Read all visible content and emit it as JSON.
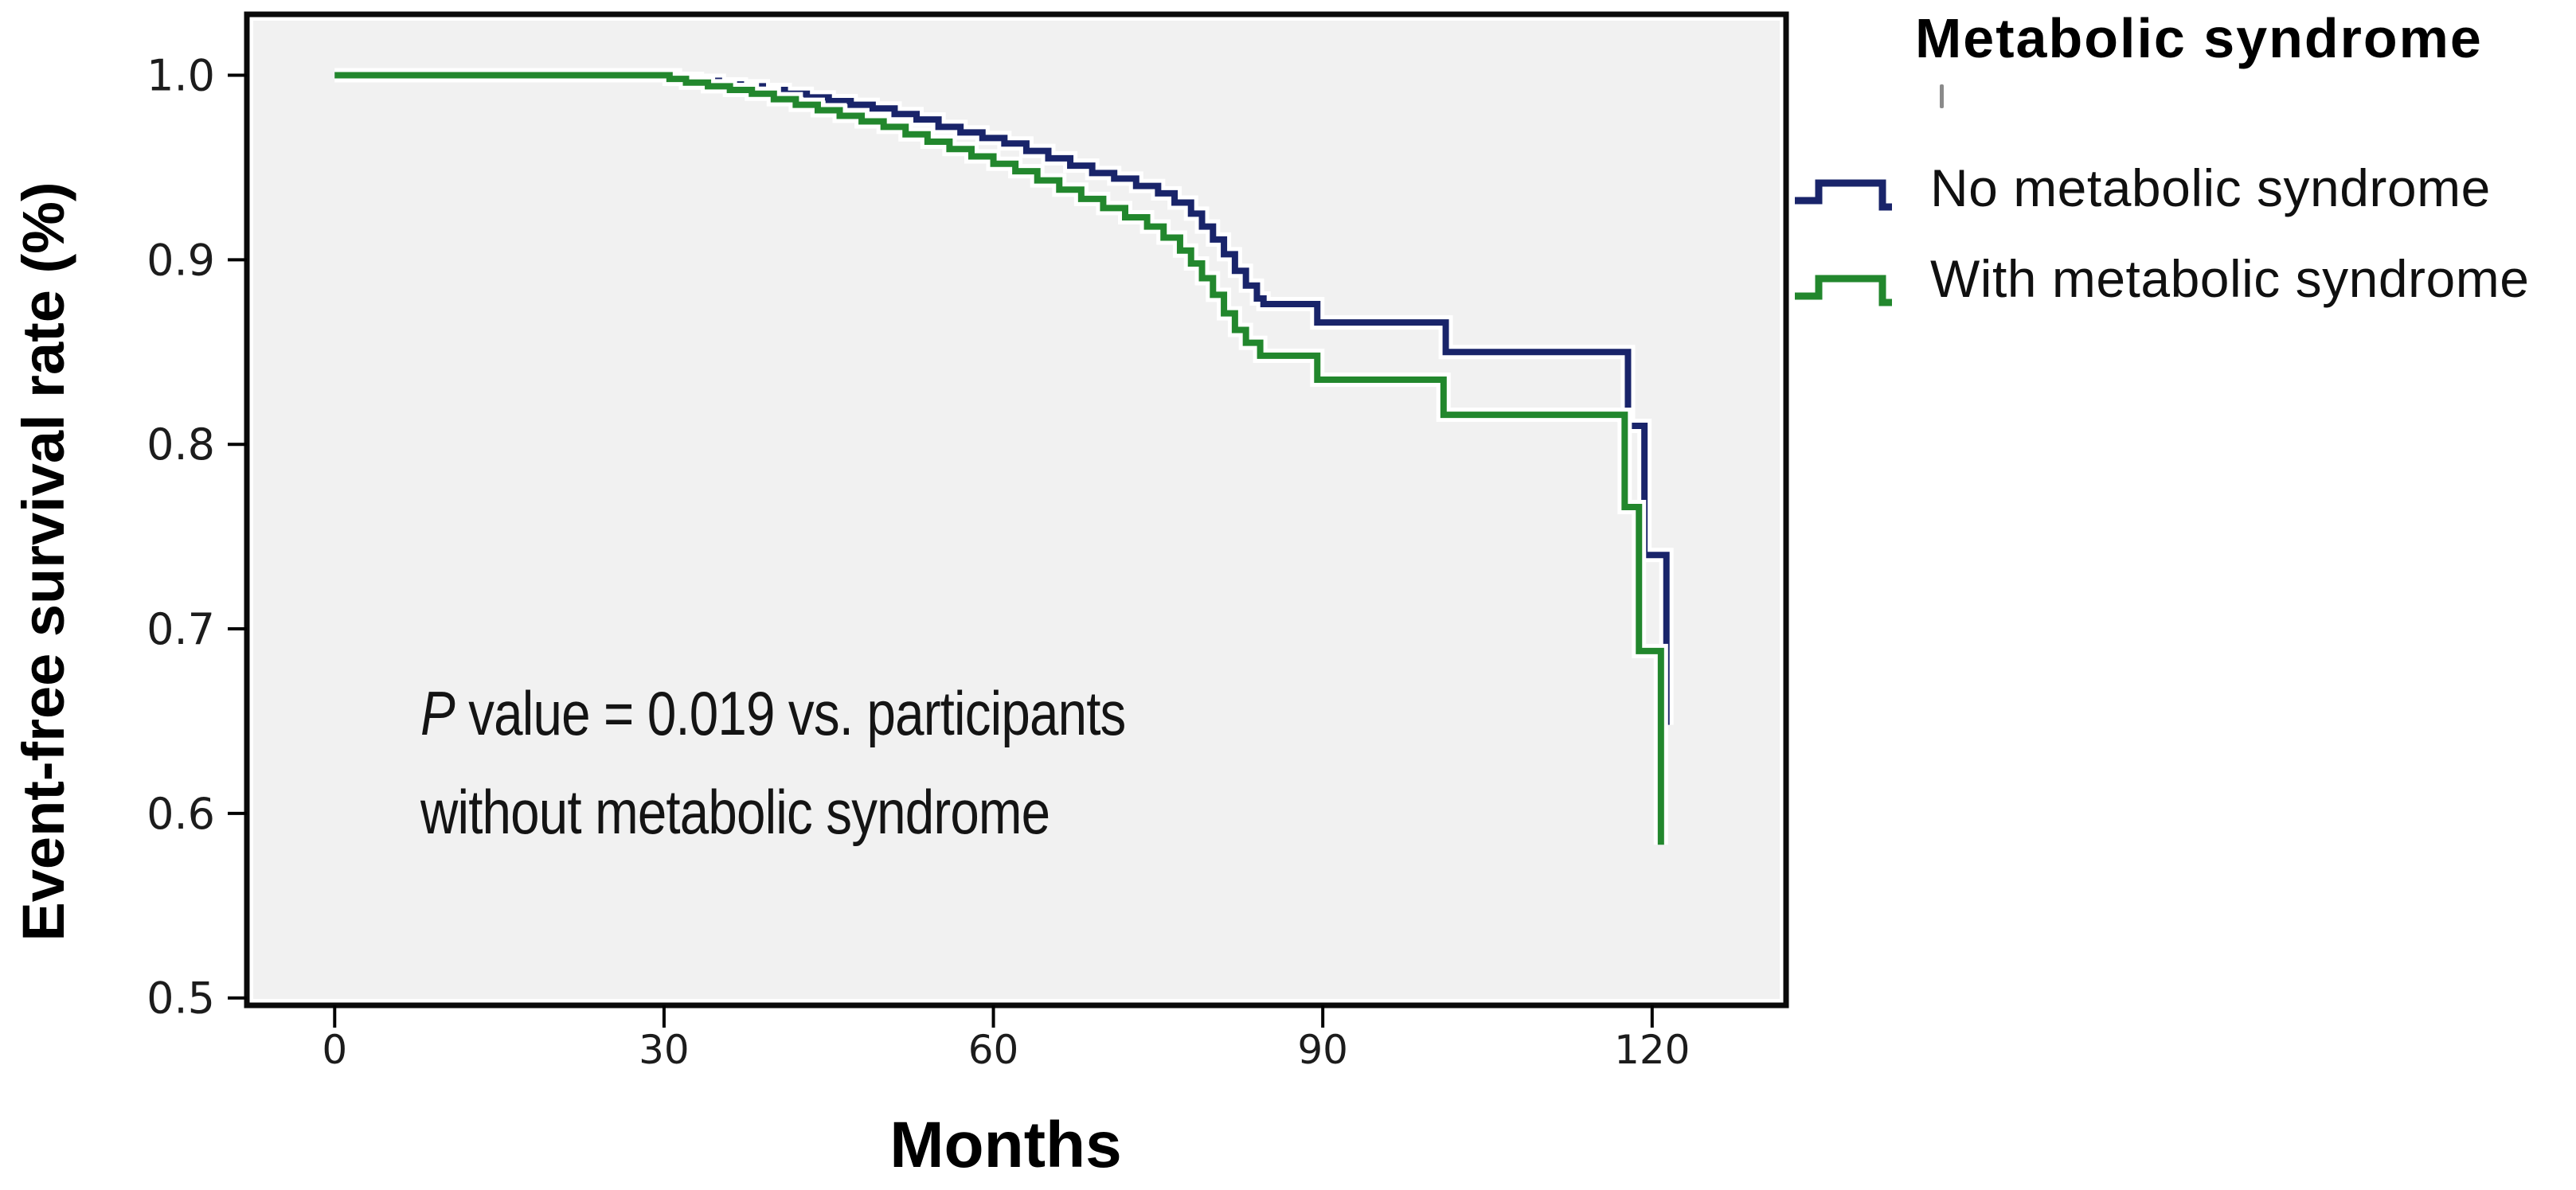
{
  "chart_data": {
    "type": "line",
    "subtype": "kaplan-meier-step",
    "title": "",
    "xlabel": "Months",
    "ylabel": "Event-free survival rate (%)",
    "x_ticks": [
      "0",
      "30",
      "60",
      "90",
      "120"
    ],
    "y_ticks": [
      "1.0",
      "0.9",
      "0.8",
      "0.7",
      "0.6",
      "0.5"
    ],
    "xlim": [
      -8,
      132.2
    ],
    "ylim": [
      0.496,
      1.033
    ],
    "grid": false,
    "plot_bg": "#f1f1f1",
    "border_color": "#0a0a0a",
    "legend_position": "right",
    "series": [
      {
        "name": "No metabolic syndrome",
        "color": "#19246a",
        "points": [
          [
            0,
            1.0
          ],
          [
            31,
            0.998
          ],
          [
            33,
            0.997
          ],
          [
            35,
            0.995
          ],
          [
            37,
            0.994
          ],
          [
            39,
            0.992
          ],
          [
            41,
            0.99
          ],
          [
            43,
            0.988
          ],
          [
            45,
            0.986
          ],
          [
            47,
            0.984
          ],
          [
            49,
            0.982
          ],
          [
            51,
            0.979
          ],
          [
            53,
            0.976
          ],
          [
            55,
            0.972
          ],
          [
            57,
            0.969
          ],
          [
            59,
            0.966
          ],
          [
            61,
            0.963
          ],
          [
            63,
            0.959
          ],
          [
            65,
            0.955
          ],
          [
            67,
            0.951
          ],
          [
            69,
            0.947
          ],
          [
            71,
            0.944
          ],
          [
            73,
            0.94
          ],
          [
            75,
            0.936
          ],
          [
            76.5,
            0.931
          ],
          [
            78,
            0.925
          ],
          [
            79,
            0.918
          ],
          [
            80,
            0.911
          ],
          [
            81,
            0.903
          ],
          [
            82,
            0.894
          ],
          [
            83,
            0.886
          ],
          [
            84,
            0.879
          ],
          [
            84.6,
            0.876
          ],
          [
            89.5,
            0.866
          ],
          [
            101.2,
            0.85
          ],
          [
            117.8,
            0.81
          ],
          [
            119.3,
            0.74
          ],
          [
            121.3,
            0.648
          ]
        ]
      },
      {
        "name": "With metabolic syndrome",
        "color": "#22872d",
        "points": [
          [
            0,
            1.0
          ],
          [
            30.5,
            0.998
          ],
          [
            32,
            0.996
          ],
          [
            34,
            0.994
          ],
          [
            36,
            0.992
          ],
          [
            38,
            0.99
          ],
          [
            40,
            0.987
          ],
          [
            42,
            0.984
          ],
          [
            44,
            0.981
          ],
          [
            46,
            0.978
          ],
          [
            48,
            0.975
          ],
          [
            50,
            0.972
          ],
          [
            52,
            0.968
          ],
          [
            54,
            0.964
          ],
          [
            56,
            0.96
          ],
          [
            58,
            0.956
          ],
          [
            60,
            0.952
          ],
          [
            62,
            0.948
          ],
          [
            64,
            0.943
          ],
          [
            66,
            0.938
          ],
          [
            68,
            0.933
          ],
          [
            70,
            0.928
          ],
          [
            72,
            0.923
          ],
          [
            74,
            0.918
          ],
          [
            75.5,
            0.912
          ],
          [
            77,
            0.905
          ],
          [
            78,
            0.898
          ],
          [
            79,
            0.89
          ],
          [
            80,
            0.881
          ],
          [
            81,
            0.871
          ],
          [
            82,
            0.862
          ],
          [
            83,
            0.855
          ],
          [
            84.3,
            0.848
          ],
          [
            89.5,
            0.835
          ],
          [
            101,
            0.816
          ],
          [
            117.5,
            0.766
          ],
          [
            118.8,
            0.688
          ],
          [
            120.8,
            0.583
          ]
        ]
      }
    ]
  },
  "annotation": {
    "p_symbol": "P",
    "line1_rest": " value = 0.019 vs. participants",
    "line2": "without metabolic syndrome"
  },
  "legend": {
    "title": "Metabolic syndrome",
    "items": [
      {
        "label": "No metabolic syndrome",
        "color": "#19246a"
      },
      {
        "label": "With metabolic syndrome",
        "color": "#22872d"
      }
    ]
  }
}
